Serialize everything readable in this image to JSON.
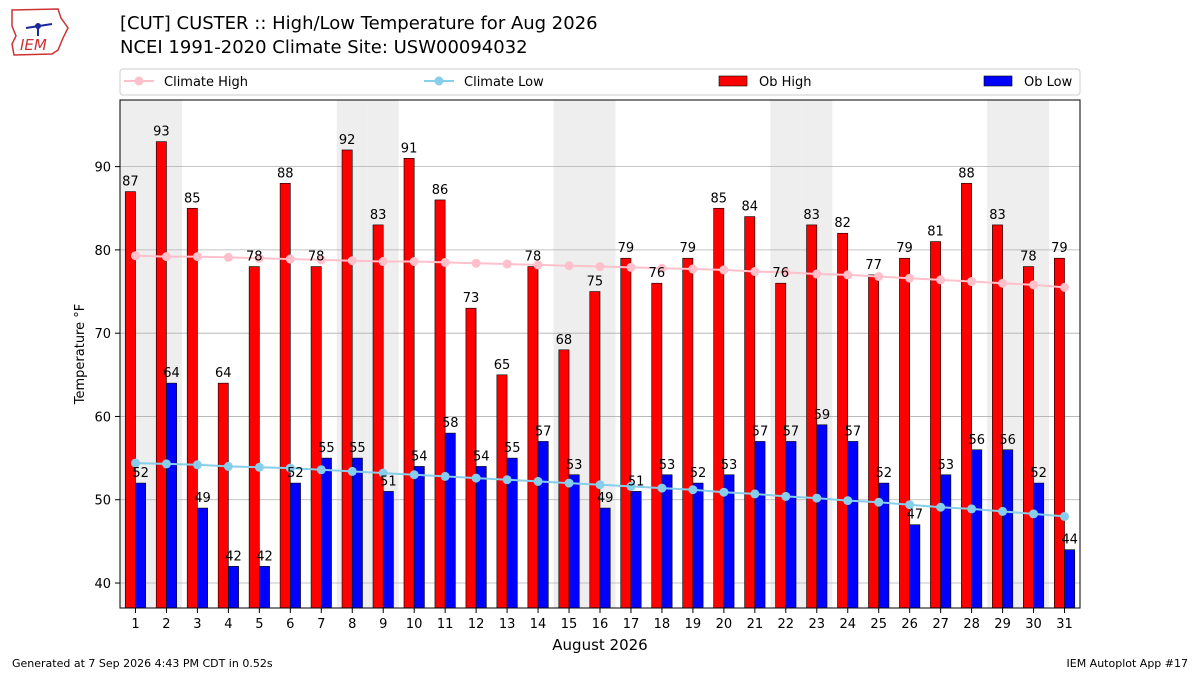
{
  "header": {
    "title_line1": "[CUT] CUSTER :: High/Low Temperature for Aug 2026",
    "title_line2": "NCEI 1991-2020 Climate Site: USW00094032"
  },
  "logo": {
    "text": "IEM",
    "icon": "iem-iowa-state-logo"
  },
  "footer": {
    "left": "Generated at 7 Sep 2026 4:43 PM CDT in 0.52s",
    "right": "IEM Autoplot App #17"
  },
  "colors": {
    "ob_high": "#ff0000",
    "ob_low": "#0000ff",
    "climate_high": "#ffc0cb",
    "climate_low": "#87ceeb",
    "weekend_shade": "#eeeeee",
    "grid": "#b0b0b0"
  },
  "chart_data": {
    "type": "bar",
    "xlabel": "August 2026",
    "ylabel": "Temperature °F",
    "ylim": [
      37,
      98
    ],
    "yticks": [
      40,
      50,
      60,
      70,
      80,
      90
    ],
    "grid": "horizontal",
    "legend_position": "top",
    "categories": [
      "1",
      "2",
      "3",
      "4",
      "5",
      "6",
      "7",
      "8",
      "9",
      "10",
      "11",
      "12",
      "13",
      "14",
      "15",
      "16",
      "17",
      "18",
      "19",
      "20",
      "21",
      "22",
      "23",
      "24",
      "25",
      "26",
      "27",
      "28",
      "29",
      "30",
      "31"
    ],
    "shaded_days": [
      "1",
      "2",
      "8",
      "9",
      "15",
      "16",
      "22",
      "23",
      "29",
      "30"
    ],
    "series": [
      {
        "name": "Ob High",
        "kind": "bar",
        "values": [
          87,
          93,
          85,
          64,
          78,
          88,
          78,
          92,
          83,
          91,
          86,
          73,
          65,
          78,
          68,
          75,
          79,
          76,
          79,
          85,
          84,
          76,
          83,
          82,
          77,
          79,
          81,
          88,
          83,
          78,
          79
        ]
      },
      {
        "name": "Ob Low",
        "kind": "bar",
        "values": [
          52,
          64,
          49,
          42,
          42,
          52,
          55,
          55,
          51,
          54,
          58,
          54,
          55,
          57,
          53,
          49,
          51,
          53,
          52,
          53,
          57,
          57,
          59,
          57,
          52,
          47,
          53,
          56,
          56,
          52,
          44
        ]
      },
      {
        "name": "Climate High",
        "kind": "line",
        "values": [
          79.3,
          79.2,
          79.2,
          79.1,
          79.0,
          78.9,
          78.8,
          78.7,
          78.6,
          78.6,
          78.5,
          78.4,
          78.3,
          78.2,
          78.1,
          78.0,
          77.9,
          77.8,
          77.7,
          77.6,
          77.4,
          77.3,
          77.1,
          77.0,
          76.8,
          76.6,
          76.4,
          76.2,
          76.0,
          75.8,
          75.5
        ]
      },
      {
        "name": "Climate Low",
        "kind": "line",
        "values": [
          54.4,
          54.3,
          54.2,
          54.0,
          53.9,
          53.8,
          53.6,
          53.4,
          53.2,
          53.0,
          52.8,
          52.6,
          52.4,
          52.2,
          52.0,
          51.8,
          51.6,
          51.4,
          51.2,
          50.9,
          50.7,
          50.4,
          50.2,
          49.9,
          49.7,
          49.4,
          49.1,
          48.9,
          48.6,
          48.3,
          48.0
        ]
      }
    ]
  }
}
